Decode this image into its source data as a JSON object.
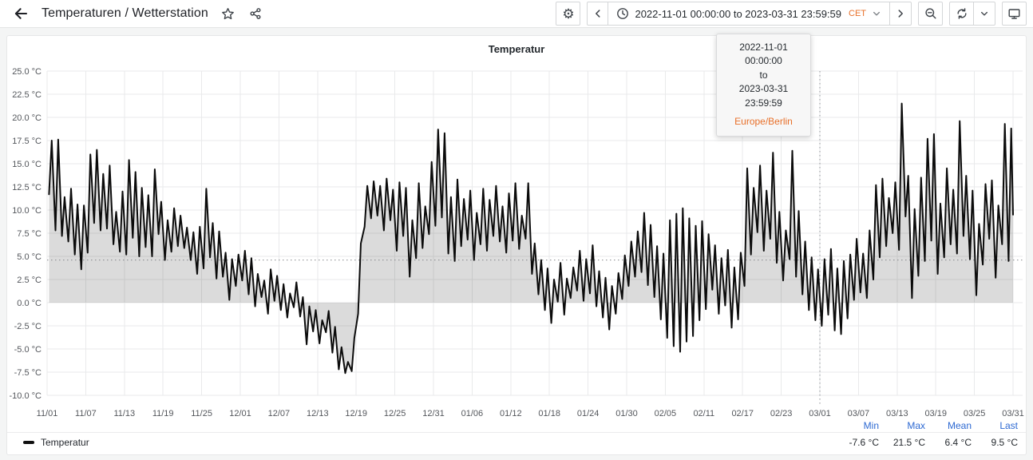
{
  "nav": {
    "title": "Temperaturen / Wetterstation",
    "icons": {
      "back": "left-arrow",
      "star": "star-outline",
      "share": "share-alt",
      "settings": "gear ⚙",
      "prev": "chevron-left",
      "clock": "clock-circle",
      "caret": "chevron-down",
      "next": "chevron-right",
      "zoom_out": "magnifier-minus",
      "refresh": "circular-arrows",
      "kiosk": "monitor"
    },
    "time_picker": {
      "range_text": "2022-11-01 00:00:00 to 2023-03-31 23:59:59",
      "timezone_abbr": "CET"
    }
  },
  "tooltip": {
    "from": "2022-11-01 00:00:00",
    "separator": "to",
    "to": "2023-03-31 23:59:59",
    "timezone": "Europe/Berlin"
  },
  "panel": {
    "title": "Temperatur"
  },
  "legend": {
    "series_label": "Temperatur",
    "stats": [
      {
        "label": "Min",
        "value": "-7.6 °C"
      },
      {
        "label": "Max",
        "value": "21.5 °C"
      },
      {
        "label": "Mean",
        "value": "6.4 °C"
      },
      {
        "label": "Last",
        "value": "9.5 °C"
      }
    ]
  },
  "chart_data": {
    "type": "line",
    "title": "Temperatur",
    "series_name": "Temperatur",
    "unit": "°C",
    "x_range": [
      "2022-11-01 00:00:00",
      "2023-03-31 23:59:59"
    ],
    "timezone": "Europe/Berlin",
    "ylim": [
      -10,
      25
    ],
    "y_tick_values": [
      25.0,
      22.5,
      20.0,
      17.5,
      15.0,
      12.5,
      10.0,
      7.5,
      5.0,
      2.5,
      0.0,
      -2.5,
      -5.0,
      -7.5,
      -10.0
    ],
    "y_tick_labels": [
      "25.0 °C",
      "22.5 °C",
      "20.0 °C",
      "17.5 °C",
      "15.0 °C",
      "12.5 °C",
      "10.0 °C",
      "7.5 °C",
      "5.0 °C",
      "2.5 °C",
      "0.0 °C",
      "-2.5 °C",
      "-5.0 °C",
      "-7.5 °C",
      "-10.0 °C"
    ],
    "x_ticks": [
      {
        "day": 0,
        "label": "11/01"
      },
      {
        "day": 6,
        "label": "11/07"
      },
      {
        "day": 12,
        "label": "11/13"
      },
      {
        "day": 18,
        "label": "11/19"
      },
      {
        "day": 24,
        "label": "11/25"
      },
      {
        "day": 30,
        "label": "12/01"
      },
      {
        "day": 36,
        "label": "12/07"
      },
      {
        "day": 42,
        "label": "12/13"
      },
      {
        "day": 48,
        "label": "12/19"
      },
      {
        "day": 54,
        "label": "12/25"
      },
      {
        "day": 60,
        "label": "12/31"
      },
      {
        "day": 66,
        "label": "01/06"
      },
      {
        "day": 72,
        "label": "01/12"
      },
      {
        "day": 78,
        "label": "01/18"
      },
      {
        "day": 84,
        "label": "01/24"
      },
      {
        "day": 90,
        "label": "01/30"
      },
      {
        "day": 96,
        "label": "02/05"
      },
      {
        "day": 102,
        "label": "02/11"
      },
      {
        "day": 108,
        "label": "02/17"
      },
      {
        "day": 114,
        "label": "02/23"
      },
      {
        "day": 120,
        "label": "03/01"
      },
      {
        "day": 126,
        "label": "03/07"
      },
      {
        "day": 132,
        "label": "03/13"
      },
      {
        "day": 138,
        "label": "03/19"
      },
      {
        "day": 144,
        "label": "03/25"
      },
      {
        "day": 150,
        "label": "03/31"
      }
    ],
    "grid": true,
    "legend_position": "bottom",
    "threshold_line_value": 4.6,
    "annotation_vline_day": 120,
    "line_color": "#0b0b0b",
    "fill_color": "rgba(0,0,0,0.14)",
    "stats": {
      "min": -7.6,
      "max": 21.5,
      "mean": 6.4,
      "last": 9.5
    },
    "sampling_note": "approximate daily [low, high] pairs read from plot, days since 2022-11-01",
    "daily_lo_hi": [
      [
        11.7,
        17.5
      ],
      [
        7.8,
        17.6
      ],
      [
        7.2,
        11.4
      ],
      [
        6.6,
        12.3
      ],
      [
        5.2,
        10.6
      ],
      [
        3.6,
        10.5
      ],
      [
        5.4,
        16.0
      ],
      [
        8.6,
        16.5
      ],
      [
        7.8,
        13.9
      ],
      [
        8.0,
        14.8
      ],
      [
        6.3,
        9.8
      ],
      [
        5.5,
        12.0
      ],
      [
        5.2,
        15.4
      ],
      [
        7.0,
        14.1
      ],
      [
        5.0,
        12.4
      ],
      [
        6.0,
        11.6
      ],
      [
        5.0,
        14.4
      ],
      [
        7.4,
        10.9
      ],
      [
        4.6,
        8.9
      ],
      [
        5.5,
        10.2
      ],
      [
        6.1,
        9.4
      ],
      [
        5.9,
        8.1
      ],
      [
        4.6,
        7.6
      ],
      [
        3.1,
        8.2
      ],
      [
        3.7,
        12.3
      ],
      [
        4.9,
        8.6
      ],
      [
        2.6,
        7.7
      ],
      [
        2.8,
        5.4
      ],
      [
        0.3,
        4.7
      ],
      [
        1.8,
        5.2
      ],
      [
        2.4,
        5.6
      ],
      [
        0.9,
        4.8
      ],
      [
        -0.4,
        3.1
      ],
      [
        0.6,
        2.4
      ],
      [
        -1.2,
        3.6
      ],
      [
        0.2,
        2.9
      ],
      [
        -0.8,
        2.0
      ],
      [
        -1.6,
        1.0
      ],
      [
        -0.5,
        2.2
      ],
      [
        -1.5,
        0.6
      ],
      [
        -4.5,
        -0.4
      ],
      [
        -3.1,
        -0.8
      ],
      [
        -4.4,
        -1.9
      ],
      [
        -3.2,
        -0.9
      ],
      [
        -5.4,
        -2.6
      ],
      [
        -7.2,
        -4.8
      ],
      [
        -7.6,
        -6.4
      ],
      [
        -7.4,
        -3.8
      ],
      [
        -1.2,
        6.4
      ],
      [
        8.2,
        12.6
      ],
      [
        9.1,
        13.1
      ],
      [
        9.4,
        12.6
      ],
      [
        7.8,
        13.4
      ],
      [
        8.9,
        12.2
      ],
      [
        5.6,
        13.0
      ],
      [
        7.2,
        12.4
      ],
      [
        2.8,
        8.9
      ],
      [
        4.8,
        12.9
      ],
      [
        5.9,
        10.4
      ],
      [
        7.4,
        15.2
      ],
      [
        8.3,
        18.7
      ],
      [
        9.2,
        18.3
      ],
      [
        5.3,
        11.4
      ],
      [
        4.5,
        13.3
      ],
      [
        6.1,
        11.2
      ],
      [
        6.8,
        12.1
      ],
      [
        4.6,
        9.7
      ],
      [
        6.3,
        12.3
      ],
      [
        5.6,
        11.1
      ],
      [
        7.2,
        12.6
      ],
      [
        6.6,
        10.4
      ],
      [
        5.4,
        11.8
      ],
      [
        6.7,
        12.9
      ],
      [
        5.8,
        9.4
      ],
      [
        6.9,
        12.9
      ],
      [
        3.1,
        6.4
      ],
      [
        0.9,
        4.6
      ],
      [
        -0.8,
        3.7
      ],
      [
        -2.2,
        2.5
      ],
      [
        0.1,
        4.3
      ],
      [
        -1.3,
        2.6
      ],
      [
        0.5,
        3.8
      ],
      [
        1.3,
        5.6
      ],
      [
        0.2,
        4.7
      ],
      [
        1.0,
        6.2
      ],
      [
        -0.4,
        3.4
      ],
      [
        -1.6,
        2.7
      ],
      [
        -2.9,
        1.8
      ],
      [
        -1.2,
        3.2
      ],
      [
        0.4,
        5.1
      ],
      [
        1.8,
        6.6
      ],
      [
        2.8,
        7.7
      ],
      [
        3.3,
        9.7
      ],
      [
        1.9,
        8.4
      ],
      [
        0.6,
        6.1
      ],
      [
        -1.8,
        5.3
      ],
      [
        -3.8,
        8.9
      ],
      [
        -4.7,
        9.6
      ],
      [
        -5.3,
        10.2
      ],
      [
        -4.2,
        9.1
      ],
      [
        -3.6,
        8.3
      ],
      [
        -1.9,
        8.8
      ],
      [
        -0.7,
        7.4
      ],
      [
        1.4,
        6.2
      ],
      [
        -1.2,
        4.8
      ],
      [
        -0.3,
        5.7
      ],
      [
        -2.7,
        3.8
      ],
      [
        -1.8,
        5.4
      ],
      [
        1.8,
        14.5
      ],
      [
        5.2,
        12.4
      ],
      [
        7.6,
        14.8
      ],
      [
        5.6,
        12.1
      ],
      [
        6.9,
        16.2
      ],
      [
        4.3,
        9.8
      ],
      [
        2.4,
        7.8
      ],
      [
        4.7,
        16.4
      ],
      [
        2.8,
        9.9
      ],
      [
        0.9,
        6.6
      ],
      [
        -0.8,
        4.9
      ],
      [
        -1.9,
        3.6
      ],
      [
        -2.5,
        4.7
      ],
      [
        -1.3,
        5.8
      ],
      [
        -3.0,
        3.7
      ],
      [
        -3.4,
        4.5
      ],
      [
        -1.7,
        5.2
      ],
      [
        0.3,
        6.9
      ],
      [
        1.1,
        5.3
      ],
      [
        0.5,
        7.8
      ],
      [
        2.5,
        12.7
      ],
      [
        4.9,
        13.4
      ],
      [
        6.1,
        11.3
      ],
      [
        7.5,
        13.0
      ],
      [
        5.7,
        21.5
      ],
      [
        9.3,
        13.7
      ],
      [
        0.5,
        10.1
      ],
      [
        2.9,
        13.5
      ],
      [
        4.5,
        17.7
      ],
      [
        6.7,
        18.2
      ],
      [
        3.1,
        10.7
      ],
      [
        4.9,
        14.5
      ],
      [
        6.3,
        12.2
      ],
      [
        5.3,
        19.6
      ],
      [
        7.2,
        13.7
      ],
      [
        4.7,
        12.1
      ],
      [
        0.8,
        8.5
      ],
      [
        4.1,
        12.8
      ],
      [
        6.9,
        13.2
      ],
      [
        2.7,
        10.5
      ],
      [
        6.3,
        19.3
      ],
      [
        4.5,
        18.8
      ]
    ],
    "end_point": {
      "day": 150,
      "value": 9.5
    }
  }
}
